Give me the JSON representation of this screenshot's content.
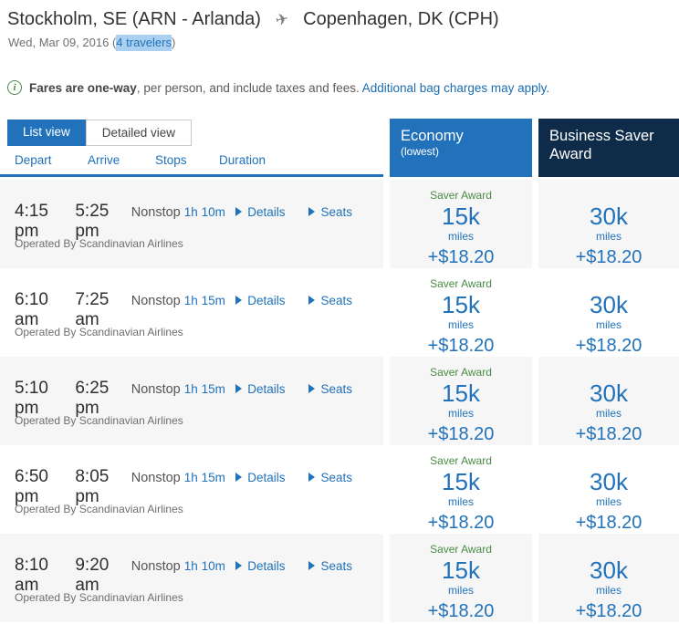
{
  "colors": {
    "primary_blue": "#2172ba",
    "dark_navy": "#0e2c49",
    "link_blue": "#1b6db0",
    "green": "#4a8b44",
    "row_alt": "#f6f6f6",
    "highlight": "#abcfee"
  },
  "header": {
    "origin": "Stockholm, SE (ARN - Arlanda)",
    "destination": "Copenhagen, DK (CPH)",
    "plane_icon": "✈",
    "date": "Wed, Mar 09, 2016",
    "paren_open": "(",
    "travelers": "4 travelers",
    "paren_close": ")"
  },
  "notice": {
    "info_icon": "i",
    "bold": "Fares are one-way",
    "text": ", per person, and include taxes and fees.",
    "link": "Additional bag charges may apply."
  },
  "tabs": {
    "list_view": "List view",
    "detailed_view": "Detailed view"
  },
  "columns": {
    "depart": "Depart",
    "arrive": "Arrive",
    "stops": "Stops",
    "duration": "Duration"
  },
  "fare_columns": {
    "economy_title": "Economy",
    "economy_subtitle": "(lowest)",
    "business_title": "Business Saver Award"
  },
  "row_labels": {
    "details": "Details",
    "seats": "Seats"
  },
  "flights": [
    {
      "depart": "4:15 pm",
      "arrive": "5:25 pm",
      "stops": "Nonstop",
      "duration": "1h 10m",
      "operated_by": "Operated By Scandinavian Airlines",
      "economy": {
        "award_label": "Saver Award",
        "miles": "15k",
        "miles_unit": "miles",
        "fee": "+$18.20"
      },
      "business": {
        "miles": "30k",
        "miles_unit": "miles",
        "fee": "+$18.20"
      }
    },
    {
      "depart": "6:10 am",
      "arrive": "7:25 am",
      "stops": "Nonstop",
      "duration": "1h 15m",
      "operated_by": "Operated By Scandinavian Airlines",
      "economy": {
        "award_label": "Saver Award",
        "miles": "15k",
        "miles_unit": "miles",
        "fee": "+$18.20"
      },
      "business": {
        "miles": "30k",
        "miles_unit": "miles",
        "fee": "+$18.20"
      }
    },
    {
      "depart": "5:10 pm",
      "arrive": "6:25 pm",
      "stops": "Nonstop",
      "duration": "1h 15m",
      "operated_by": "Operated By Scandinavian Airlines",
      "economy": {
        "award_label": "Saver Award",
        "miles": "15k",
        "miles_unit": "miles",
        "fee": "+$18.20"
      },
      "business": {
        "miles": "30k",
        "miles_unit": "miles",
        "fee": "+$18.20"
      }
    },
    {
      "depart": "6:50 pm",
      "arrive": "8:05 pm",
      "stops": "Nonstop",
      "duration": "1h 15m",
      "operated_by": "Operated By Scandinavian Airlines",
      "economy": {
        "award_label": "Saver Award",
        "miles": "15k",
        "miles_unit": "miles",
        "fee": "+$18.20"
      },
      "business": {
        "miles": "30k",
        "miles_unit": "miles",
        "fee": "+$18.20"
      }
    },
    {
      "depart": "8:10 am",
      "arrive": "9:20 am",
      "stops": "Nonstop",
      "duration": "1h 10m",
      "operated_by": "Operated By Scandinavian Airlines",
      "economy": {
        "award_label": "Saver Award",
        "miles": "15k",
        "miles_unit": "miles",
        "fee": "+$18.20"
      },
      "business": {
        "miles": "30k",
        "miles_unit": "miles",
        "fee": "+$18.20"
      }
    }
  ]
}
